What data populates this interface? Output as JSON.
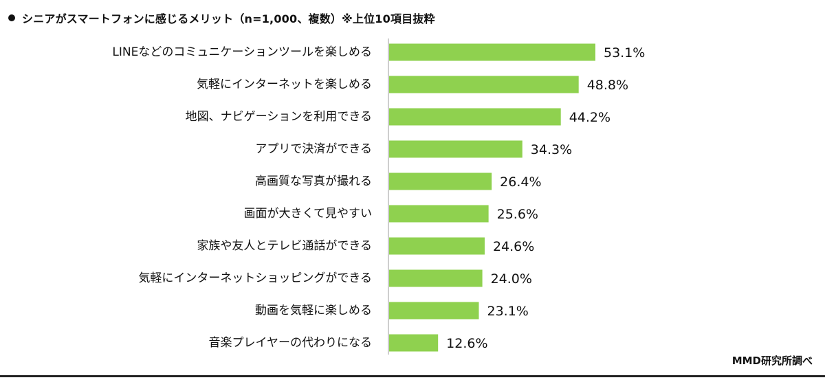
{
  "header": {
    "title": "シニアがスマートフォンに感じるメリット（n=1,000、複数）※上位10項目抜粋"
  },
  "source": "MMD研究所調べ",
  "colors": {
    "bar": "#8fd14f",
    "axis": "#bdbdbd",
    "text": "#111111"
  },
  "chart_data": {
    "type": "bar",
    "orientation": "horizontal",
    "title": "シニアがスマートフォンに感じるメリット（n=1,000、複数）※上位10項目抜粋",
    "xlabel": "",
    "ylabel": "",
    "unit": "%",
    "categories": [
      "LINEなどのコミュニケーションツールを楽しめる",
      "気軽にインターネットを楽しめる",
      "地図、ナビゲーションを利用できる",
      "アプリで決済ができる",
      "高画質な写真が撮れる",
      "画面が大きくて見やすい",
      "家族や友人とテレビ通話ができる",
      "気軽にインターネットショッピングができる",
      "動画を気軽に楽しめる",
      "音楽プレイヤーの代わりになる"
    ],
    "values": [
      53.1,
      48.8,
      44.2,
      34.3,
      26.4,
      25.6,
      24.6,
      24.0,
      23.1,
      12.6
    ],
    "value_labels": [
      "53.1%",
      "48.8%",
      "44.2%",
      "34.3%",
      "26.4%",
      "25.6%",
      "24.6%",
      "24.0%",
      "23.1%",
      "12.6%"
    ],
    "xlim": [
      0,
      53.1
    ],
    "grid": false,
    "legend": "none"
  }
}
